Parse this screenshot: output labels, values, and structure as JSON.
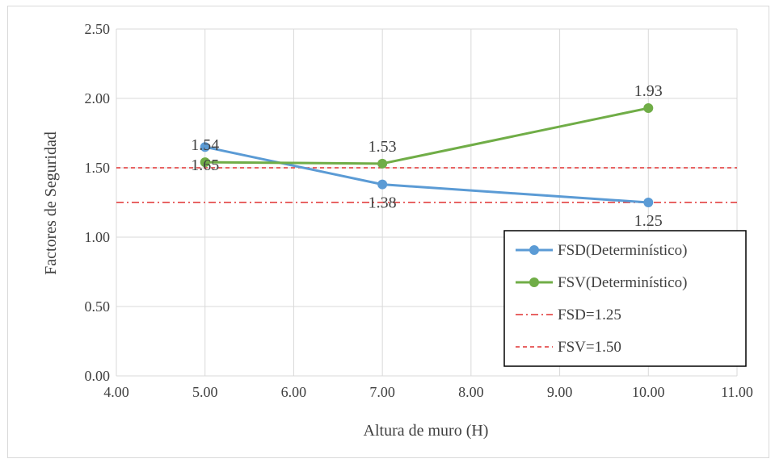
{
  "chart_data": {
    "type": "line",
    "title": "",
    "xlabel": "Altura de muro  (H)",
    "ylabel": "Factores de Seguridad",
    "xlim": [
      4.0,
      11.0
    ],
    "ylim": [
      0.0,
      2.5
    ],
    "x_ticks": [
      4,
      5,
      6,
      7,
      8,
      9,
      10,
      11
    ],
    "x_tick_labels": [
      "4.00",
      "5.00",
      "6.00",
      "7.00",
      "8.00",
      "9.00",
      "10.00",
      "11.00"
    ],
    "y_ticks": [
      0,
      0.5,
      1,
      1.5,
      2,
      2.5
    ],
    "y_tick_labels": [
      "0.00",
      "0.50",
      "1.00",
      "1.50",
      "2.00",
      "2.50"
    ],
    "grid": true,
    "legend_position": "bottom-right",
    "series": [
      {
        "name": "FSD(Determinístico)",
        "color": "#5b9bd5",
        "style": "solid-marker",
        "x": [
          5,
          7,
          10
        ],
        "values": [
          1.65,
          1.38,
          1.25
        ],
        "labels": [
          "1.65",
          "1.38",
          "1.25"
        ]
      },
      {
        "name": "FSV(Determinístico)",
        "color": "#70ad47",
        "style": "solid-marker",
        "x": [
          5,
          7,
          10
        ],
        "values": [
          1.54,
          1.53,
          1.93
        ],
        "labels": [
          "1.54",
          "1.53",
          "1.93"
        ]
      },
      {
        "name": "FSD=1.25",
        "color": "#e03030",
        "style": "dash-dot",
        "value": 1.25
      },
      {
        "name": "FSV=1.50",
        "color": "#e03030",
        "style": "dashed",
        "value": 1.5
      }
    ]
  }
}
